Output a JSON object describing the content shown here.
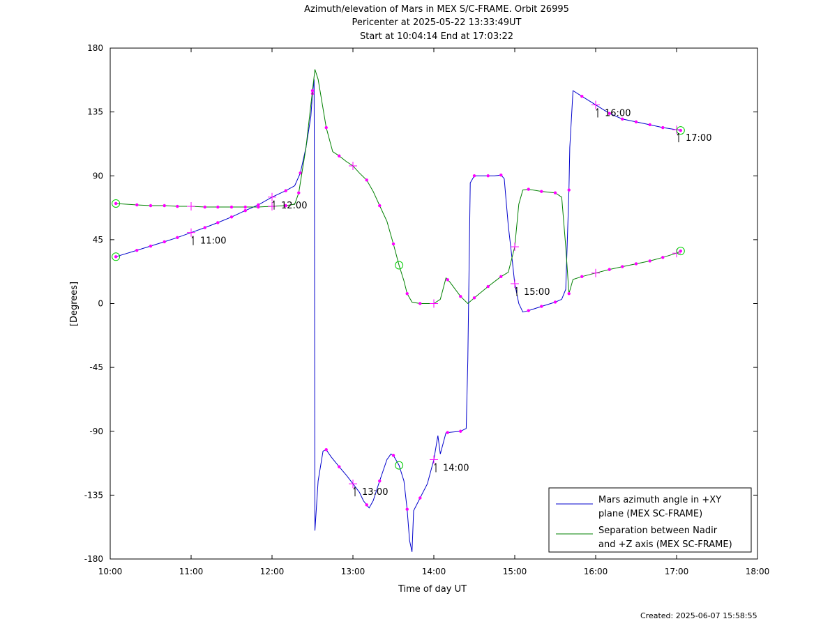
{
  "chart_data": {
    "type": "line",
    "title_lines": [
      "Azimuth/elevation of Mars in MEX S/C-FRAME.  Orbit 26995",
      "Pericenter at 2025-05-22 13:33:49UT",
      "Start at 10:04:14 End at 17:03:22"
    ],
    "xlabel": "Time of day UT",
    "ylabel": "[Degrees]",
    "xlim": [
      10,
      18
    ],
    "ylim": [
      -180,
      180
    ],
    "x_ticks": [
      10,
      11,
      12,
      13,
      14,
      15,
      16,
      17,
      18
    ],
    "x_tick_labels": [
      "10:00",
      "11:00",
      "12:00",
      "13:00",
      "14:00",
      "15:00",
      "16:00",
      "17:00",
      "18:00"
    ],
    "y_ticks": [
      -180,
      -135,
      -90,
      -45,
      0,
      45,
      90,
      135,
      180
    ],
    "y_tick_labels": [
      "-180",
      "-135",
      "-90",
      "-45",
      "0",
      "45",
      "90",
      "135",
      "180"
    ],
    "grid": false,
    "legend_position": "bottom-right",
    "series": [
      {
        "name": "Mars azimuth angle in +XY plane (MEX SC-FRAME)",
        "legend_lines": [
          "Mars azimuth angle in +XY",
          "plane (MEX SC-FRAME)"
        ],
        "color": "#0000cc",
        "points": [
          [
            10.07,
            33
          ],
          [
            10.33,
            37.5
          ],
          [
            10.5,
            40.5
          ],
          [
            10.67,
            43.5
          ],
          [
            10.83,
            46.5
          ],
          [
            11.0,
            50
          ],
          [
            11.17,
            53.5
          ],
          [
            11.33,
            57
          ],
          [
            11.5,
            61
          ],
          [
            11.67,
            65.5
          ],
          [
            11.83,
            69.5
          ],
          [
            12.0,
            75
          ],
          [
            12.17,
            79.5
          ],
          [
            12.28,
            83
          ],
          [
            12.35,
            92
          ],
          [
            12.42,
            110
          ],
          [
            12.48,
            132
          ],
          [
            12.5,
            148
          ],
          [
            12.52,
            158
          ],
          [
            12.525,
            60
          ],
          [
            12.53,
            -160
          ],
          [
            12.57,
            -125
          ],
          [
            12.63,
            -104
          ],
          [
            12.67,
            -103
          ],
          [
            12.73,
            -108
          ],
          [
            12.83,
            -115
          ],
          [
            12.92,
            -121
          ],
          [
            13.0,
            -127
          ],
          [
            13.08,
            -133
          ],
          [
            13.13,
            -139
          ],
          [
            13.2,
            -144
          ],
          [
            13.25,
            -139
          ],
          [
            13.33,
            -125
          ],
          [
            13.42,
            -110
          ],
          [
            13.47,
            -106
          ],
          [
            13.5,
            -107
          ],
          [
            13.57,
            -114
          ],
          [
            13.63,
            -125
          ],
          [
            13.67,
            -145
          ],
          [
            13.7,
            -167
          ],
          [
            13.73,
            -175
          ],
          [
            13.75,
            -146
          ],
          [
            13.83,
            -137
          ],
          [
            13.92,
            -127
          ],
          [
            14.0,
            -110
          ],
          [
            14.05,
            -93
          ],
          [
            14.08,
            -106
          ],
          [
            14.15,
            -91
          ],
          [
            14.33,
            -90
          ],
          [
            14.4,
            -88
          ],
          [
            14.42,
            -40
          ],
          [
            14.45,
            85
          ],
          [
            14.5,
            90
          ],
          [
            14.58,
            90
          ],
          [
            14.75,
            90
          ],
          [
            14.83,
            90.5
          ],
          [
            14.87,
            88
          ],
          [
            14.92,
            55
          ],
          [
            14.97,
            30
          ],
          [
            15.0,
            14
          ],
          [
            15.05,
            0
          ],
          [
            15.1,
            -6
          ],
          [
            15.17,
            -5
          ],
          [
            15.33,
            -2
          ],
          [
            15.5,
            1
          ],
          [
            15.58,
            3
          ],
          [
            15.63,
            10
          ],
          [
            15.67,
            80
          ],
          [
            15.68,
            110
          ],
          [
            15.72,
            150
          ],
          [
            15.83,
            146
          ],
          [
            16.0,
            140
          ],
          [
            16.17,
            134
          ],
          [
            16.33,
            130
          ],
          [
            16.5,
            128
          ],
          [
            16.67,
            126
          ],
          [
            16.83,
            124
          ],
          [
            17.0,
            122.5
          ],
          [
            17.05,
            122
          ]
        ],
        "markers": [
          10.07,
          10.33,
          10.5,
          10.67,
          10.83,
          11.17,
          11.33,
          11.5,
          11.67,
          11.83,
          12.17,
          12.35,
          12.5,
          12.67,
          12.83,
          13.17,
          13.33,
          13.5,
          13.67,
          13.83,
          14.17,
          14.33,
          14.5,
          14.67,
          14.83,
          15.17,
          15.33,
          15.5,
          15.67,
          15.83,
          16.17,
          16.33,
          16.5,
          16.67,
          16.83,
          17.05
        ],
        "hour_markers": [
          {
            "x": 11.0,
            "label": "11:00"
          },
          {
            "x": 12.0,
            "label": "12:00"
          },
          {
            "x": 13.0,
            "label": "13:00"
          },
          {
            "x": 14.0,
            "label": "14:00"
          },
          {
            "x": 15.0,
            "label": "15:00"
          },
          {
            "x": 16.0,
            "label": "16:00"
          },
          {
            "x": 17.0,
            "label": "17:00"
          }
        ],
        "circle_markers": [
          10.07,
          13.57,
          17.05
        ]
      },
      {
        "name": "Separation between Nadir and +Z axis (MEX SC-FRAME)",
        "legend_lines": [
          "Separation between Nadir",
          "and +Z axis (MEX SC-FRAME)"
        ],
        "color": "#008000",
        "points": [
          [
            10.07,
            70.5
          ],
          [
            10.33,
            69.5
          ],
          [
            10.5,
            69
          ],
          [
            10.67,
            69
          ],
          [
            10.83,
            68.5
          ],
          [
            11.0,
            68.5
          ],
          [
            11.17,
            68
          ],
          [
            11.33,
            68
          ],
          [
            11.5,
            68
          ],
          [
            11.67,
            68
          ],
          [
            11.83,
            68
          ],
          [
            12.0,
            68.5
          ],
          [
            12.17,
            69
          ],
          [
            12.28,
            70
          ],
          [
            12.33,
            78
          ],
          [
            12.42,
            110
          ],
          [
            12.5,
            150
          ],
          [
            12.53,
            165
          ],
          [
            12.57,
            158
          ],
          [
            12.67,
            124
          ],
          [
            12.75,
            107
          ],
          [
            12.83,
            104
          ],
          [
            12.92,
            100
          ],
          [
            13.0,
            97
          ],
          [
            13.08,
            92
          ],
          [
            13.17,
            87
          ],
          [
            13.25,
            79
          ],
          [
            13.33,
            69
          ],
          [
            13.42,
            58
          ],
          [
            13.5,
            42
          ],
          [
            13.57,
            27
          ],
          [
            13.63,
            16
          ],
          [
            13.67,
            7
          ],
          [
            13.73,
            1
          ],
          [
            13.83,
            0
          ],
          [
            14.0,
            0
          ],
          [
            14.08,
            3
          ],
          [
            14.15,
            18
          ],
          [
            14.2,
            15
          ],
          [
            14.33,
            5
          ],
          [
            14.42,
            0
          ],
          [
            14.5,
            4
          ],
          [
            14.67,
            12
          ],
          [
            14.83,
            19
          ],
          [
            14.92,
            22
          ],
          [
            15.0,
            40
          ],
          [
            15.05,
            70
          ],
          [
            15.1,
            80
          ],
          [
            15.17,
            80.5
          ],
          [
            15.33,
            79
          ],
          [
            15.5,
            78
          ],
          [
            15.58,
            75
          ],
          [
            15.63,
            40
          ],
          [
            15.67,
            7
          ],
          [
            15.72,
            17
          ],
          [
            15.83,
            19
          ],
          [
            16.0,
            21.5
          ],
          [
            16.17,
            24
          ],
          [
            16.33,
            26
          ],
          [
            16.5,
            28
          ],
          [
            16.67,
            30
          ],
          [
            16.83,
            32.5
          ],
          [
            17.0,
            35.5
          ],
          [
            17.05,
            37
          ]
        ],
        "markers": [
          10.07,
          10.33,
          10.5,
          10.67,
          10.83,
          11.17,
          11.33,
          11.5,
          11.67,
          11.83,
          12.17,
          12.33,
          12.5,
          12.67,
          12.83,
          13.17,
          13.33,
          13.5,
          13.67,
          13.83,
          14.17,
          14.33,
          14.5,
          14.67,
          14.83,
          15.17,
          15.33,
          15.5,
          15.67,
          15.83,
          16.17,
          16.33,
          16.5,
          16.67,
          16.83,
          17.05
        ],
        "hour_markers": [
          {
            "x": 11.0
          },
          {
            "x": 12.0
          },
          {
            "x": 13.0
          },
          {
            "x": 14.0
          },
          {
            "x": 15.0
          },
          {
            "x": 16.0
          },
          {
            "x": 17.0
          }
        ],
        "circle_markers": [
          10.07,
          13.57,
          17.05
        ]
      }
    ],
    "marker_color": "#ff00ff",
    "circle_color": "#00cc00"
  },
  "footer": {
    "created": "Created: 2025-06-07 15:58:55"
  }
}
